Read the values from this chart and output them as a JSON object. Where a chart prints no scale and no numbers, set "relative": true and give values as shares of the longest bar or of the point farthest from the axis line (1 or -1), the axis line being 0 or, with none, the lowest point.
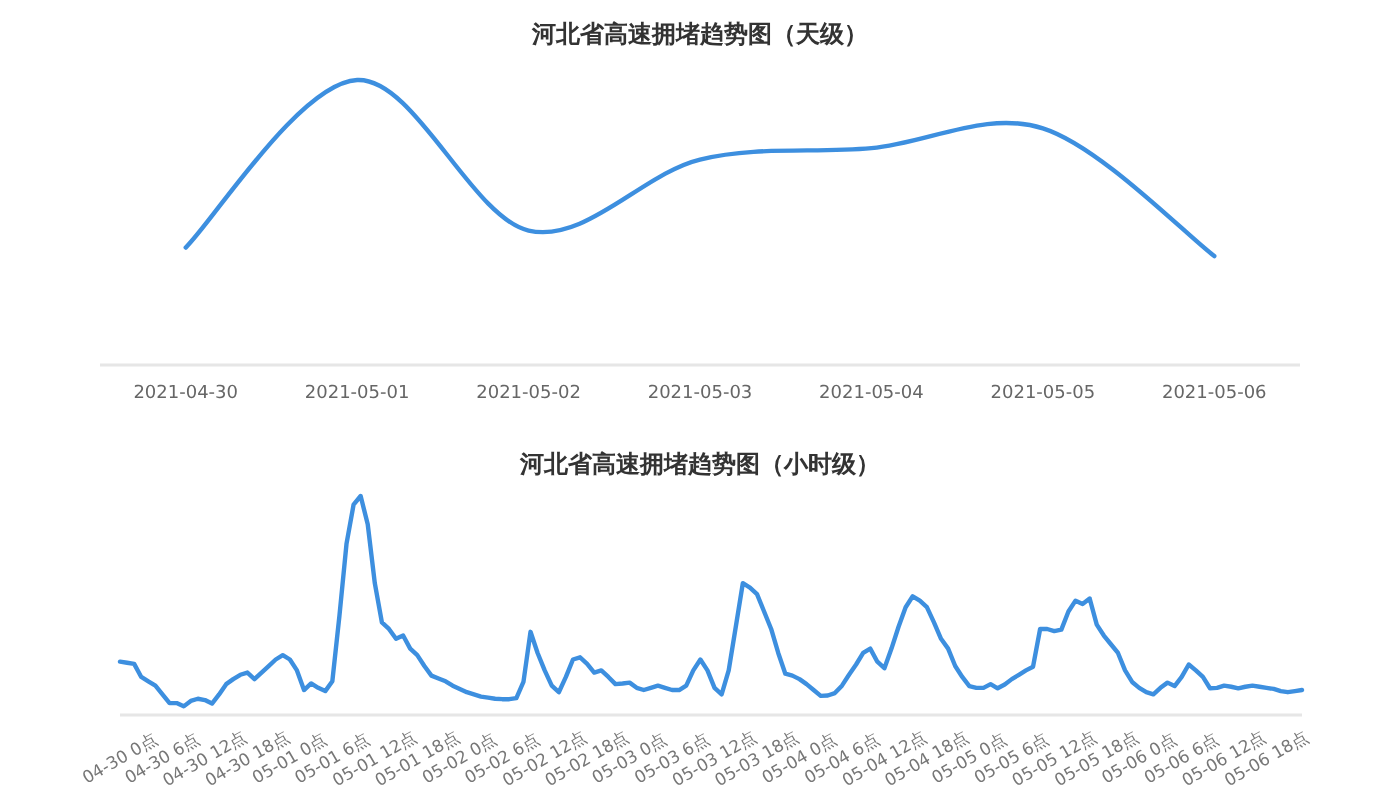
{
  "chart_data": [
    {
      "type": "line",
      "title": "河北省高速拥堵趋势图（天级）",
      "relative": true,
      "color": "#3d8fdf",
      "categories": [
        "2021-04-30",
        "2021-05-01",
        "2021-05-02",
        "2021-05-03",
        "2021-05-04",
        "2021-05-05",
        "2021-05-06"
      ],
      "values": [
        0.41,
        1,
        0.47,
        0.72,
        0.76,
        0.83,
        0.38
      ]
    },
    {
      "type": "line",
      "title": "河北省高速拥堵趋势图（小时级）",
      "relative": true,
      "color": "#3d8fdf",
      "categories": [
        "04-30 0点",
        null,
        null,
        null,
        null,
        null,
        "04-30 6点",
        null,
        null,
        null,
        null,
        null,
        "04-30 12点",
        null,
        null,
        null,
        null,
        null,
        "04-30 18点",
        null,
        null,
        null,
        null,
        null,
        "05-01 0点",
        null,
        null,
        null,
        null,
        null,
        "05-01 6点",
        null,
        null,
        null,
        null,
        null,
        "05-01 12点",
        null,
        null,
        null,
        null,
        null,
        "05-01 18点",
        null,
        null,
        null,
        null,
        null,
        "05-02 0点",
        null,
        null,
        null,
        null,
        null,
        "05-02 6点",
        null,
        null,
        null,
        null,
        null,
        "05-02 12点",
        null,
        null,
        null,
        null,
        null,
        "05-02 18点",
        null,
        null,
        null,
        null,
        null,
        "05-03 0点",
        null,
        null,
        null,
        null,
        null,
        "05-03 6点",
        null,
        null,
        null,
        null,
        null,
        "05-03 12点",
        null,
        null,
        null,
        null,
        null,
        "05-03 18点",
        null,
        null,
        null,
        null,
        null,
        "05-04 0点",
        null,
        null,
        null,
        null,
        null,
        "05-04 6点",
        null,
        null,
        null,
        null,
        null,
        "05-04 12点",
        null,
        null,
        null,
        null,
        null,
        "05-04 18点",
        null,
        null,
        null,
        null,
        null,
        "05-05 0点",
        null,
        null,
        null,
        null,
        null,
        "05-05 6点",
        null,
        null,
        null,
        null,
        null,
        "05-05 12点",
        null,
        null,
        null,
        null,
        null,
        "05-05 18点",
        null,
        null,
        null,
        null,
        null,
        "05-06 0点",
        null,
        null,
        null,
        null,
        null,
        "05-06 6点",
        null,
        null,
        null,
        null,
        null,
        "05-06 12点",
        null,
        null,
        null,
        null,
        null,
        "05-06 18点",
        null,
        null,
        null,
        null,
        null
      ],
      "values": [
        0.24,
        0.235,
        0.23,
        0.17,
        0.15,
        0.13,
        0.09,
        0.05,
        0.05,
        0.035,
        0.06,
        0.07,
        0.064,
        0.048,
        0.09,
        0.137,
        0.16,
        0.18,
        0.19,
        0.16,
        0.19,
        0.22,
        0.25,
        0.27,
        0.25,
        0.2,
        0.11,
        0.14,
        0.12,
        0.105,
        0.15,
        0.45,
        0.78,
        0.96,
        1,
        0.87,
        0.6,
        0.42,
        0.39,
        0.345,
        0.36,
        0.3,
        0.27,
        0.22,
        0.176,
        0.163,
        0.15,
        0.13,
        0.115,
        0.1,
        0.09,
        0.08,
        0.075,
        0.07,
        0.068,
        0.068,
        0.073,
        0.147,
        0.377,
        0.28,
        0.2,
        0.13,
        0.1,
        0.17,
        0.25,
        0.26,
        0.23,
        0.19,
        0.2,
        0.17,
        0.137,
        0.14,
        0.144,
        0.12,
        0.11,
        0.12,
        0.13,
        0.12,
        0.11,
        0.11,
        0.13,
        0.2,
        0.25,
        0.2,
        0.12,
        0.09,
        0.2,
        0.4,
        0.6,
        0.58,
        0.55,
        0.47,
        0.39,
        0.28,
        0.185,
        0.176,
        0.16,
        0.137,
        0.11,
        0.083,
        0.085,
        0.096,
        0.13,
        0.18,
        0.227,
        0.28,
        0.3,
        0.24,
        0.21,
        0.3,
        0.4,
        0.49,
        0.54,
        0.52,
        0.49,
        0.42,
        0.345,
        0.3,
        0.22,
        0.17,
        0.128,
        0.12,
        0.12,
        0.137,
        0.118,
        0.135,
        0.16,
        0.18,
        0.2,
        0.217,
        0.39,
        0.39,
        0.38,
        0.387,
        0.47,
        0.52,
        0.505,
        0.53,
        0.41,
        0.36,
        0.32,
        0.28,
        0.2,
        0.147,
        0.12,
        0.1,
        0.09,
        0.12,
        0.144,
        0.128,
        0.17,
        0.227,
        0.2,
        0.17,
        0.118,
        0.12,
        0.13,
        0.125,
        0.118,
        0.125,
        0.13,
        0.125,
        0.12,
        0.115,
        0.105,
        0.1,
        0.105,
        0.11
      ]
    }
  ]
}
